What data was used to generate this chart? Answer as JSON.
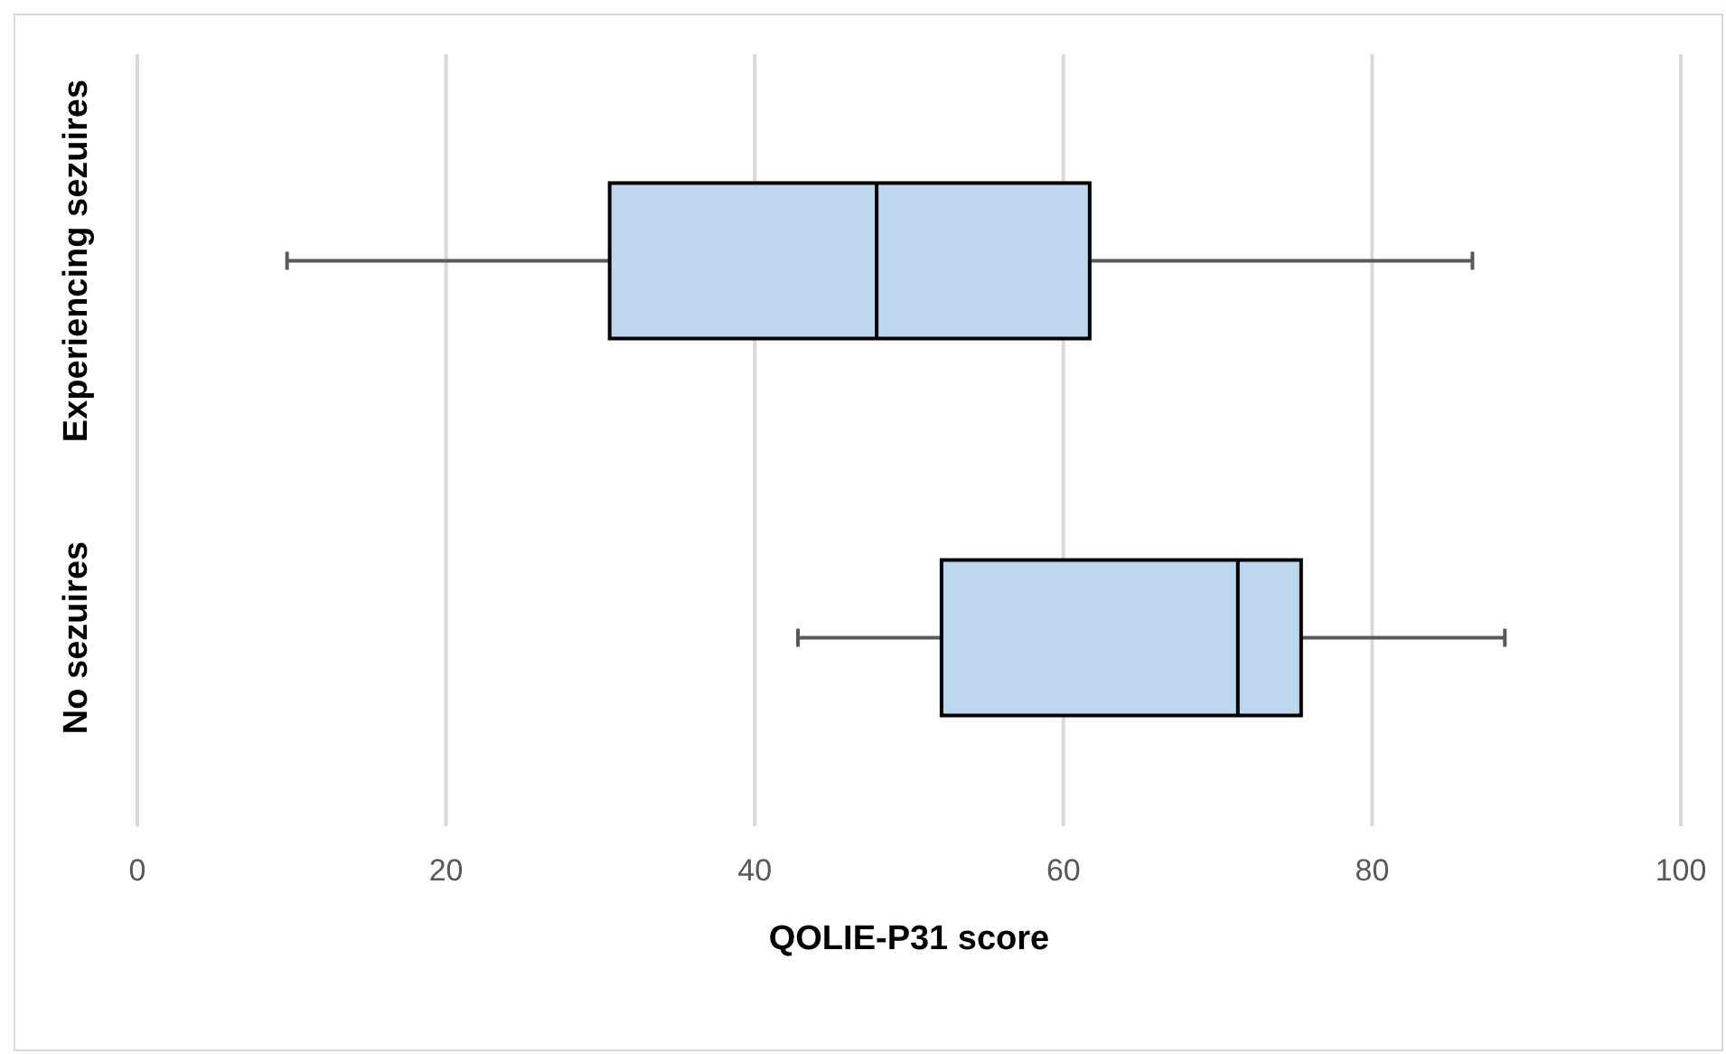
{
  "chart_data": {
    "type": "box",
    "orientation": "horizontal",
    "categories": [
      "Experiencing  sezuires",
      "No sezuires"
    ],
    "boxes": [
      {
        "low": 9.7,
        "q1": 30.6,
        "median": 47.9,
        "q3": 61.7,
        "high": 86.5
      },
      {
        "low": 42.8,
        "q1": 52.1,
        "median": 71.3,
        "q3": 75.4,
        "high": 88.6
      }
    ],
    "color": "#bdd7ee",
    "xlabel": "QOLIE-P31 score",
    "xlim": [
      0,
      100
    ],
    "xticks": [
      0,
      20,
      40,
      60,
      80,
      100
    ],
    "grid": "x"
  }
}
